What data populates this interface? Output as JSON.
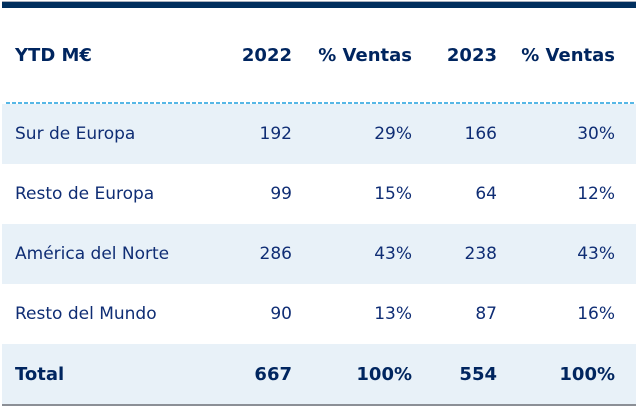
{
  "chart_data": {
    "type": "table",
    "title": "YTD M€",
    "columns": [
      "2022",
      "% Ventas",
      "2023",
      "% Ventas"
    ],
    "rows": [
      {
        "label": "Sur de Europa",
        "values": [
          192,
          "29%",
          166,
          "30%"
        ]
      },
      {
        "label": "Resto de Europa",
        "values": [
          99,
          "15%",
          64,
          "12%"
        ]
      },
      {
        "label": "América del Norte",
        "values": [
          286,
          "43%",
          238,
          "43%"
        ]
      },
      {
        "label": "Resto del Mundo",
        "values": [
          90,
          "13%",
          87,
          "16%"
        ]
      },
      {
        "label": "Total",
        "values": [
          667,
          "100%",
          554,
          "100%"
        ],
        "is_total": true
      }
    ],
    "units": "M€ (millions of euros)",
    "layout": {
      "value_alignment": "right",
      "striped_rows": true
    }
  },
  "colors": {
    "top_bar_navy": "#002f5e",
    "header_text_navy": "#00255f",
    "body_text_navy": "#0f2d74",
    "row_highlight_blue": "#e8f1f8",
    "dashed_divider_blue": "#56b7e6",
    "bottom_line_gray": "#8b8f96"
  }
}
